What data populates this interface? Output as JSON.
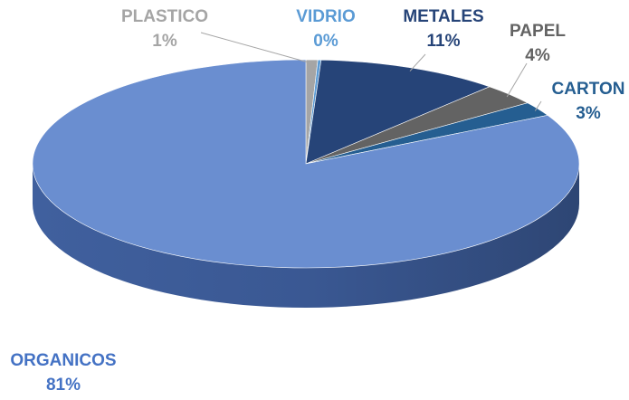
{
  "chart_data": {
    "type": "pie",
    "title": "",
    "categories": [
      "PLASTICO",
      "VIDRIO",
      "METALES",
      "PAPEL",
      "CARTON",
      "ORGANICOS"
    ],
    "values": [
      1,
      0,
      11,
      4,
      3,
      81
    ],
    "percent_labels": [
      "1%",
      "0%",
      "11%",
      "4%",
      "3%",
      "81%"
    ],
    "colors": [
      "#A5A5A5",
      "#5B9BD5",
      "#264478",
      "#636363",
      "#255E91",
      "#6A8ED0"
    ],
    "label_colors": [
      "#A5A5A5",
      "#5B9BD5",
      "#264478",
      "#636363",
      "#255E91",
      "#4472C4"
    ],
    "legend": "none",
    "style": "3d-pie"
  }
}
